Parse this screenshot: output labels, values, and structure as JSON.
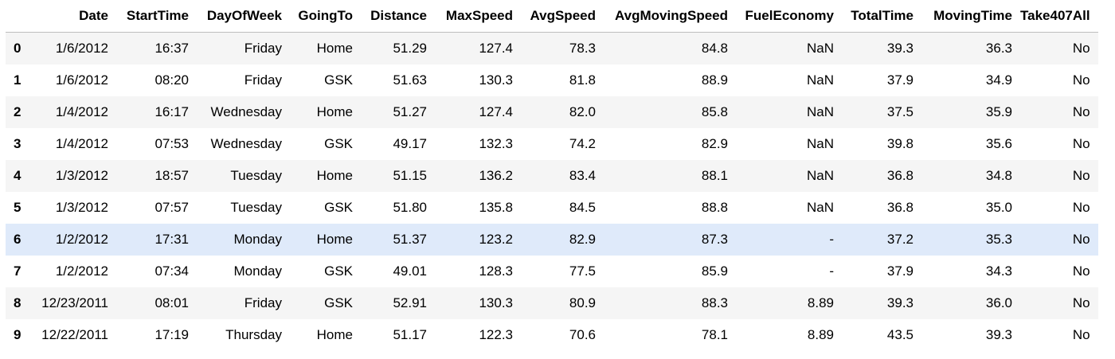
{
  "table": {
    "index_header": "",
    "columns": [
      "Date",
      "StartTime",
      "DayOfWeek",
      "GoingTo",
      "Distance",
      "MaxSpeed",
      "AvgSpeed",
      "AvgMovingSpeed",
      "FuelEconomy",
      "TotalTime",
      "MovingTime",
      "Take407All"
    ],
    "rows": [
      {
        "index": "0",
        "cells": [
          "1/6/2012",
          "16:37",
          "Friday",
          "Home",
          "51.29",
          "127.4",
          "78.3",
          "84.8",
          "NaN",
          "39.3",
          "36.3",
          "No"
        ]
      },
      {
        "index": "1",
        "cells": [
          "1/6/2012",
          "08:20",
          "Friday",
          "GSK",
          "51.63",
          "130.3",
          "81.8",
          "88.9",
          "NaN",
          "37.9",
          "34.9",
          "No"
        ]
      },
      {
        "index": "2",
        "cells": [
          "1/4/2012",
          "16:17",
          "Wednesday",
          "Home",
          "51.27",
          "127.4",
          "82.0",
          "85.8",
          "NaN",
          "37.5",
          "35.9",
          "No"
        ]
      },
      {
        "index": "3",
        "cells": [
          "1/4/2012",
          "07:53",
          "Wednesday",
          "GSK",
          "49.17",
          "132.3",
          "74.2",
          "82.9",
          "NaN",
          "39.8",
          "35.6",
          "No"
        ]
      },
      {
        "index": "4",
        "cells": [
          "1/3/2012",
          "18:57",
          "Tuesday",
          "Home",
          "51.15",
          "136.2",
          "83.4",
          "88.1",
          "NaN",
          "36.8",
          "34.8",
          "No"
        ]
      },
      {
        "index": "5",
        "cells": [
          "1/3/2012",
          "07:57",
          "Tuesday",
          "GSK",
          "51.80",
          "135.8",
          "84.5",
          "88.8",
          "NaN",
          "36.8",
          "35.0",
          "No"
        ]
      },
      {
        "index": "6",
        "cells": [
          "1/2/2012",
          "17:31",
          "Monday",
          "Home",
          "51.37",
          "123.2",
          "82.9",
          "87.3",
          "-",
          "37.2",
          "35.3",
          "No"
        ]
      },
      {
        "index": "7",
        "cells": [
          "1/2/2012",
          "07:34",
          "Monday",
          "GSK",
          "49.01",
          "128.3",
          "77.5",
          "85.9",
          "-",
          "37.9",
          "34.3",
          "No"
        ]
      },
      {
        "index": "8",
        "cells": [
          "12/23/2011",
          "08:01",
          "Friday",
          "GSK",
          "52.91",
          "130.3",
          "80.9",
          "88.3",
          "8.89",
          "39.3",
          "36.0",
          "No"
        ]
      },
      {
        "index": "9",
        "cells": [
          "12/22/2011",
          "17:19",
          "Thursday",
          "Home",
          "51.17",
          "122.3",
          "70.6",
          "78.1",
          "8.89",
          "43.5",
          "39.3",
          "No"
        ]
      }
    ]
  },
  "colors": {
    "stripe": "#f5f5f5",
    "hover": "#dfeafa",
    "header_rule": "#bdbdbd",
    "text": "#000000"
  }
}
